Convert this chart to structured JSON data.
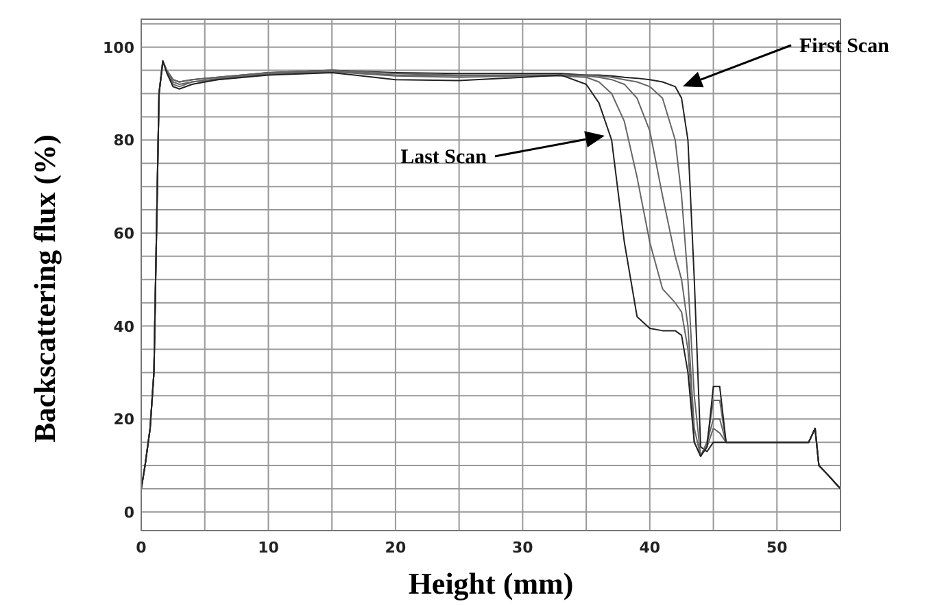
{
  "chart_data": {
    "type": "line",
    "xlabel": "Height (mm)",
    "ylabel": "Backscattering flux (%)",
    "x": [
      0,
      0.3,
      0.7,
      1,
      1.2,
      1.4,
      1.7,
      2,
      2.5,
      3,
      4,
      6,
      10,
      15,
      20,
      25,
      30,
      33,
      35,
      36,
      37,
      38,
      39,
      40,
      41,
      42,
      42.5,
      43,
      43.5,
      44,
      44.5,
      45,
      45.5,
      46,
      50,
      52.5,
      53,
      53.3,
      54,
      55
    ],
    "series": [
      {
        "color": "#222222",
        "values": [
          5,
          10,
          18,
          30,
          60,
          90,
          97,
          95,
          93,
          92.5,
          93,
          93.5,
          94.5,
          95,
          94.5,
          94.3,
          94.3,
          94.3,
          94,
          94,
          93.8,
          93.5,
          93.3,
          93,
          92.5,
          91.5,
          89,
          80,
          50,
          14,
          13,
          15,
          15,
          15,
          15,
          15,
          18,
          10,
          8,
          5
        ]
      },
      {
        "color": "#666666",
        "values": [
          5,
          10,
          18,
          30,
          60,
          90,
          97,
          95,
          93,
          92.5,
          93,
          93.5,
          94.5,
          95,
          94.3,
          94,
          94,
          94,
          94,
          93.8,
          93.5,
          93,
          92.5,
          91.5,
          89,
          80,
          68,
          50,
          25,
          12,
          14,
          18,
          17,
          15,
          15,
          15,
          18,
          10,
          8,
          5
        ]
      },
      {
        "color": "#666666",
        "values": [
          5,
          10,
          18,
          30,
          60,
          90,
          97,
          95,
          92.5,
          92,
          92.5,
          93.2,
          94.3,
          94.8,
          94,
          93.8,
          94,
          94,
          93.8,
          93.5,
          93,
          92,
          89,
          82,
          68,
          55,
          50,
          40,
          18,
          12,
          15,
          20,
          20,
          15,
          15,
          15,
          18,
          10,
          8,
          5
        ]
      },
      {
        "color": "#666666",
        "values": [
          5,
          10,
          18,
          30,
          60,
          90,
          97,
          95,
          92,
          91.5,
          92.5,
          93,
          94.2,
          94.7,
          93.8,
          93.5,
          93.8,
          93.8,
          93.5,
          92.5,
          90,
          84,
          72,
          58,
          48,
          45,
          43,
          35,
          15,
          12,
          15,
          24,
          24,
          15,
          15,
          15,
          18,
          10,
          8,
          5
        ]
      },
      {
        "color": "#222222",
        "values": [
          5,
          10,
          18,
          30,
          60,
          90,
          97,
          94.5,
          91.5,
          91,
          92,
          93,
          94,
          94.5,
          93,
          92.8,
          93.5,
          94,
          92,
          88,
          80,
          58,
          42,
          39.5,
          39,
          39,
          38,
          30,
          15,
          12,
          14,
          27,
          27,
          15,
          15,
          15,
          18,
          10,
          8,
          5
        ]
      }
    ],
    "xlim": [
      0,
      55
    ],
    "ylim": [
      -4,
      106
    ],
    "xticks": [
      0,
      {
        "value": 5,
        "label": null
      },
      10,
      {
        "value": 15,
        "label": null
      },
      20,
      {
        "value": 25,
        "label": null
      },
      30,
      {
        "value": 35,
        "label": null
      },
      40,
      {
        "value": 45,
        "label": null
      },
      50
    ],
    "yticks": [
      0,
      {
        "value": 5,
        "label": null
      },
      {
        "value": 10,
        "label": null
      },
      {
        "value": 15,
        "label": null
      },
      20,
      {
        "value": 25,
        "label": null
      },
      {
        "value": 30,
        "label": null
      },
      {
        "value": 35,
        "label": null
      },
      40,
      {
        "value": 45,
        "label": null
      },
      {
        "value": 50,
        "label": null
      },
      {
        "value": 55,
        "label": null
      },
      60,
      {
        "value": 65,
        "label": null
      },
      {
        "value": 70,
        "label": null
      },
      {
        "value": 75,
        "label": null
      },
      80,
      {
        "value": 85,
        "label": null
      },
      {
        "value": 90,
        "label": null
      },
      {
        "value": 95,
        "label": null
      },
      100,
      {
        "value": 105,
        "label": null
      }
    ],
    "grid": true,
    "line_style": "solid",
    "marker": "none",
    "annotations": [
      "First Scan",
      "Last Scan"
    ]
  }
}
